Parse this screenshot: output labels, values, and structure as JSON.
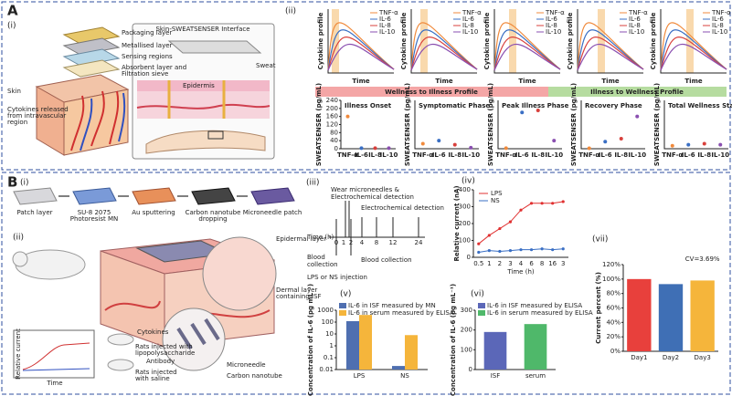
{
  "figure": {
    "a": {
      "label": "A",
      "sub_i": "(i)",
      "sub_ii": "(ii)",
      "layers": [
        "Packaging layer",
        "Metallised layer",
        "Sensing regions",
        "Absorbent layer and",
        "Filtration sieve",
        "Skin",
        "Cytokines released",
        "from intravascular",
        "region"
      ],
      "interface_title": "Skin-SWEATSENSER Interface",
      "sweat": "Sweat",
      "epidermis": "Epidermis",
      "profile_ylabel": "Cytokine profile",
      "profile_xlabel": "Time",
      "legend": [
        "TNF-α",
        "IL-6",
        "IL-8",
        "IL-10"
      ],
      "banner_left": "Wellness to Illness Profile",
      "banner_right": "Illness to Wellness Profile"
    },
    "b": {
      "label": "B",
      "sub_i": "(i)",
      "sub_ii": "(ii)",
      "sub_iii": "(iii)",
      "sub_iv": "(iv)",
      "sub_v": "(v)",
      "sub_vi": "(vi)",
      "sub_vii": "(vii)",
      "steps": [
        [
          "Patch layer"
        ],
        [
          "SU-8 2075",
          "Photoresist MN"
        ],
        [
          "Au sputtering"
        ],
        [
          "Carbon nanotube",
          "dropping"
        ],
        [
          "Microneedle patch"
        ]
      ],
      "schematic": {
        "epidermal": "Epidermal layer",
        "dermal": [
          "Dermal layer",
          "containing ISF"
        ],
        "microneedle": "Microneedle",
        "cnt": "Carbon nanotube",
        "antibody": "Antibody",
        "cytokines": "Cytokines",
        "rats_lps": [
          "Rats injected with",
          "lipopolysaccharide"
        ],
        "rats_saline": [
          "Rats injected",
          "with saline"
        ],
        "inset_y": "Relative current",
        "inset_x": "Time"
      },
      "timeline": {
        "wear": [
          "Wear microneedles &",
          "Electrochemical detection"
        ],
        "detect": "Electrochemical detection",
        "axis": "Time (h)",
        "ticks": [
          "0",
          "1",
          "2",
          "4",
          "8",
          "12",
          "24"
        ],
        "blood1": [
          "Blood",
          "collection"
        ],
        "blood2": "Blood collection",
        "inject": "LPS or NS injection"
      }
    }
  },
  "chart_data": [
    {
      "type": "scatter",
      "title": "Illness Onset",
      "y_label": "SWEATSENSER (pg/mL)",
      "categories": [
        "TNF-α",
        "IL-6",
        "IL-8",
        "IL-10"
      ],
      "values": [
        160,
        3,
        3,
        3
      ],
      "colors": [
        "#f08a3c",
        "#3a6fc4",
        "#d8403c",
        "#8a4fb0"
      ],
      "ylim": [
        0,
        240
      ],
      "yticks": [
        0,
        40,
        80,
        120,
        160,
        200,
        240
      ]
    },
    {
      "type": "scatter",
      "title": "Symptomatic Phase",
      "y_label": "SWEATSENSER (pg/mL)",
      "categories": [
        "TNF-α",
        "IL-6",
        "IL-8",
        "IL-10"
      ],
      "values": [
        25,
        40,
        20,
        5
      ],
      "colors": [
        "#f08a3c",
        "#3a6fc4",
        "#d8403c",
        "#8a4fb0"
      ],
      "ylim": [
        0,
        240
      ]
    },
    {
      "type": "scatter",
      "title": "Peak Illness Phase",
      "y_label": "SWEATSENSER (pg/mL)",
      "categories": [
        "TNF-α",
        "IL-6",
        "IL-8",
        "IL-10"
      ],
      "values": [
        3,
        180,
        190,
        40
      ],
      "colors": [
        "#f08a3c",
        "#3a6fc4",
        "#d8403c",
        "#8a4fb0"
      ],
      "ylim": [
        0,
        240
      ]
    },
    {
      "type": "scatter",
      "title": "Recovery Phase",
      "y_label": "SWEATSENSER (pg/mL)",
      "categories": [
        "TNF-α",
        "IL-6",
        "IL-8",
        "IL-10"
      ],
      "values": [
        2,
        35,
        50,
        160
      ],
      "colors": [
        "#f08a3c",
        "#3a6fc4",
        "#d8403c",
        "#8a4fb0"
      ],
      "ylim": [
        0,
        240
      ]
    },
    {
      "type": "scatter",
      "title": "Total Wellness State",
      "y_label": "SWEATSENSER (pg/mL)",
      "categories": [
        "TNF-α",
        "IL-6",
        "IL-8",
        "IL-10"
      ],
      "values": [
        15,
        20,
        25,
        20
      ],
      "colors": [
        "#f08a3c",
        "#3a6fc4",
        "#d8403c",
        "#8a4fb0"
      ],
      "ylim": [
        0,
        240
      ]
    },
    {
      "type": "line",
      "x_label": "Time (h)",
      "y_label": "Relative current (nA)",
      "categories": [
        "0.5",
        "1",
        "2",
        "3",
        "4",
        "6",
        "8",
        "16",
        "3"
      ],
      "series": [
        {
          "name": "LPS",
          "color": "#e03030",
          "values": [
            80,
            130,
            170,
            210,
            280,
            320,
            320,
            320,
            330
          ]
        },
        {
          "name": "NS",
          "color": "#3a6fc4",
          "values": [
            30,
            40,
            35,
            40,
            45,
            45,
            50,
            45,
            50
          ]
        }
      ],
      "ylim": [
        0,
        400
      ],
      "yticks": [
        0,
        100,
        200,
        300,
        400
      ]
    },
    {
      "type": "bar",
      "log_y": true,
      "y_label": "Concentration of IL-6 (pg mL⁻¹)",
      "categories": [
        "LPS",
        "NS"
      ],
      "series": [
        {
          "name": "IL-6 in ISF measured by MN",
          "color": "#4f6fb0",
          "values": [
            120,
            0.02
          ]
        },
        {
          "name": "IL-6 in serum measured by ELISA",
          "color": "#f5b53b",
          "values": [
            400,
            8
          ]
        }
      ],
      "ylim": [
        0.01,
        1000
      ],
      "yticks": [
        0.01,
        0.1,
        1,
        10,
        100,
        1000
      ]
    },
    {
      "type": "bar",
      "y_label": "Concentration of IL-6 (pg mL⁻¹)",
      "categories": [
        "ISF",
        "serum"
      ],
      "series": [
        {
          "name": "IL-6 in ISF measured by ELISA",
          "color": "#5b67b8",
          "values": [
            190,
            null
          ]
        },
        {
          "name": "IL-6 in serum measured by ELISA",
          "color": "#4fb86a",
          "values": [
            null,
            230
          ]
        }
      ],
      "ylim": [
        0,
        300
      ],
      "yticks": [
        0,
        100,
        200,
        300
      ]
    },
    {
      "type": "bar",
      "y_label": "Current percent (%)",
      "categories": [
        "Day1",
        "Day2",
        "Day3"
      ],
      "values": [
        100,
        93,
        98
      ],
      "colors": [
        "#e8403c",
        "#3f6fb5",
        "#f5b53b"
      ],
      "annotation": "CV=3.69%",
      "ylim": [
        0,
        120
      ],
      "yticks": [
        {
          "value": 0,
          "label": "0%"
        },
        {
          "value": 20,
          "label": "20%"
        },
        {
          "value": 40,
          "label": "40%"
        },
        {
          "value": 60,
          "label": "60%"
        },
        {
          "value": 80,
          "label": "80%"
        },
        {
          "value": 100,
          "label": "100%"
        },
        {
          "value": 120,
          "label": "120%"
        }
      ]
    }
  ]
}
